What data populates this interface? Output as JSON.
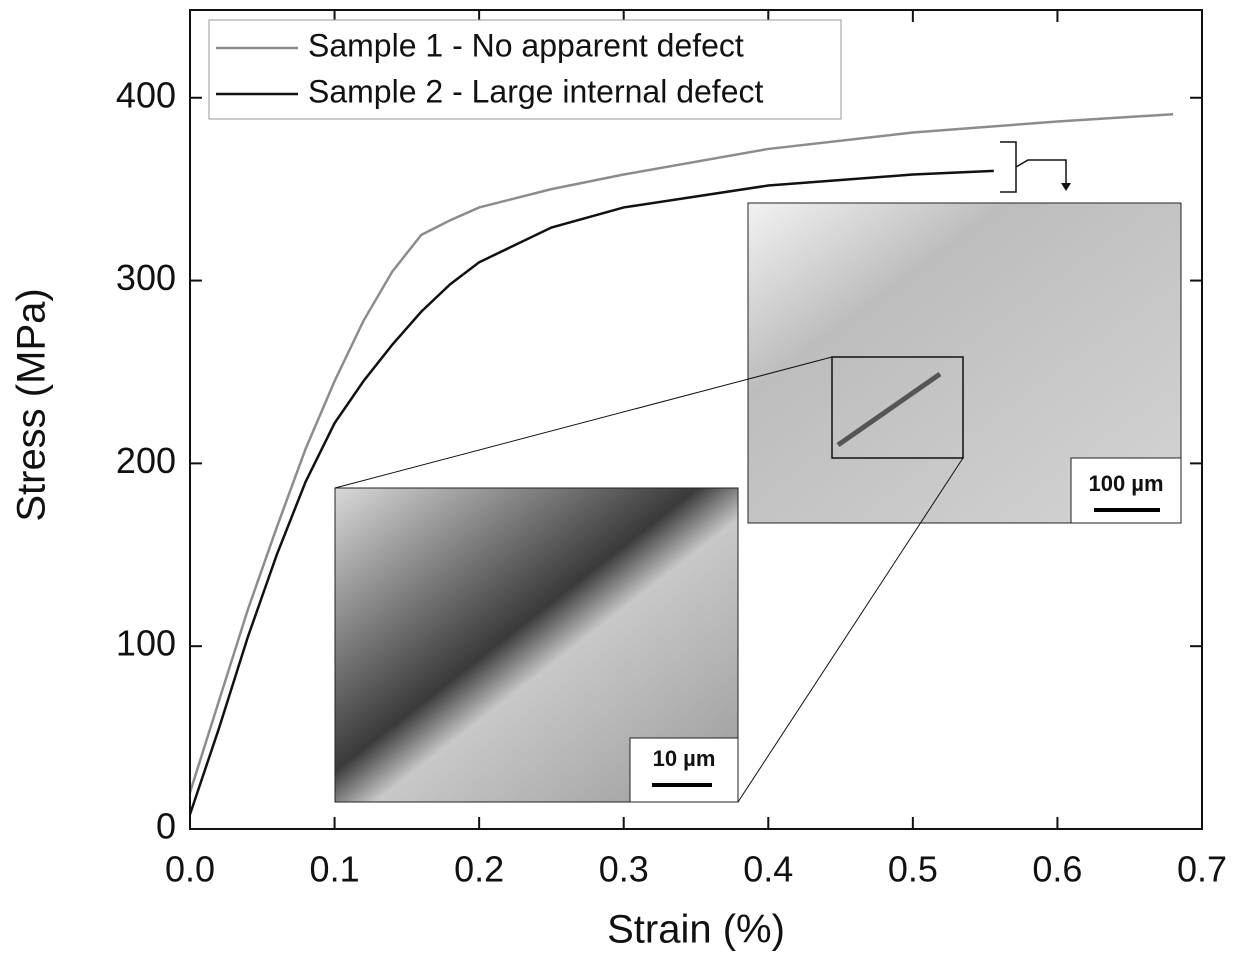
{
  "chart_data": {
    "type": "line",
    "x_label": "Strain (%)",
    "y_label": "Stress (MPa)",
    "xlim": [
      0,
      0.7
    ],
    "ylim": [
      0,
      448
    ],
    "xticks": [
      {
        "value": 0,
        "label": "0.0"
      },
      0.1,
      0.2,
      0.3,
      0.4,
      0.5,
      0.6,
      0.7
    ],
    "yticks": [
      0,
      100,
      200,
      300,
      400
    ],
    "legend": "upper left",
    "series": [
      {
        "name": "Sample 1 - No apparent defect",
        "color": "#8c8c8c",
        "x": [
          0,
          0.02,
          0.04,
          0.06,
          0.08,
          0.1,
          0.12,
          0.14,
          0.16,
          0.18,
          0.2,
          0.25,
          0.3,
          0.4,
          0.5,
          0.6,
          0.68
        ],
        "values": [
          20,
          70,
          120,
          165,
          208,
          245,
          278,
          305,
          325,
          333,
          340,
          350,
          358,
          372,
          381,
          387,
          391
        ]
      },
      {
        "name": "Sample 2 - Large internal defect",
        "color": "#111111",
        "x": [
          0,
          0.02,
          0.04,
          0.06,
          0.08,
          0.1,
          0.12,
          0.14,
          0.16,
          0.18,
          0.2,
          0.25,
          0.3,
          0.4,
          0.5,
          0.556
        ],
        "values": [
          8,
          55,
          105,
          150,
          190,
          222,
          245,
          265,
          283,
          298,
          310,
          329,
          340,
          352,
          358,
          360
        ]
      }
    ],
    "annotations": [
      "100 µm",
      "10 µm"
    ]
  }
}
